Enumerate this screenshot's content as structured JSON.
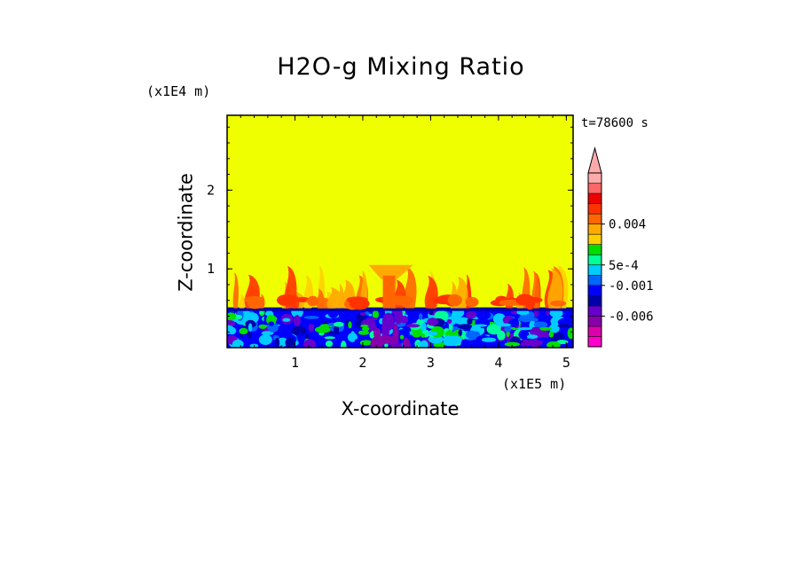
{
  "chart_data": {
    "type": "heatmap",
    "title": "H2O-g Mixing Ratio",
    "xlabel": "X-coordinate",
    "ylabel": "Z-coordinate",
    "x_unit_label": "(x1E5 m)",
    "y_unit_label": "(x1E4 m)",
    "time_label": "t=78600 s",
    "xlim": [
      0,
      5.1
    ],
    "ylim": [
      0,
      2.95
    ],
    "x_ticks": [
      1,
      2,
      3,
      4,
      5
    ],
    "y_ticks": [
      1,
      2
    ],
    "x_tick_labels": [
      "1",
      "2",
      "3",
      "4",
      "5"
    ],
    "y_tick_labels": [
      "1",
      "2"
    ],
    "background_level_color": "#f0ff00",
    "boundary_layer_top_z": 0.5,
    "plume_top_z": 1.05,
    "colorbar": {
      "colors_bottom_to_top": [
        "#ff00cc",
        "#dd00aa",
        "#8800aa",
        "#6600cc",
        "#0000aa",
        "#0000ff",
        "#0066ff",
        "#00ccff",
        "#00ff99",
        "#00dd00",
        "#ffd000",
        "#ffaa00",
        "#ff6600",
        "#ff3300",
        "#ee0000",
        "#ff6666",
        "#ffaaaa"
      ],
      "labels": [
        {
          "text": "0.004",
          "level": 0.004
        },
        {
          "text": "5e-4",
          "level": 0.0005
        },
        {
          "text": "-0.001",
          "level": -0.001
        },
        {
          "text": "-0.006",
          "level": -0.006
        }
      ],
      "extend": "max"
    }
  }
}
